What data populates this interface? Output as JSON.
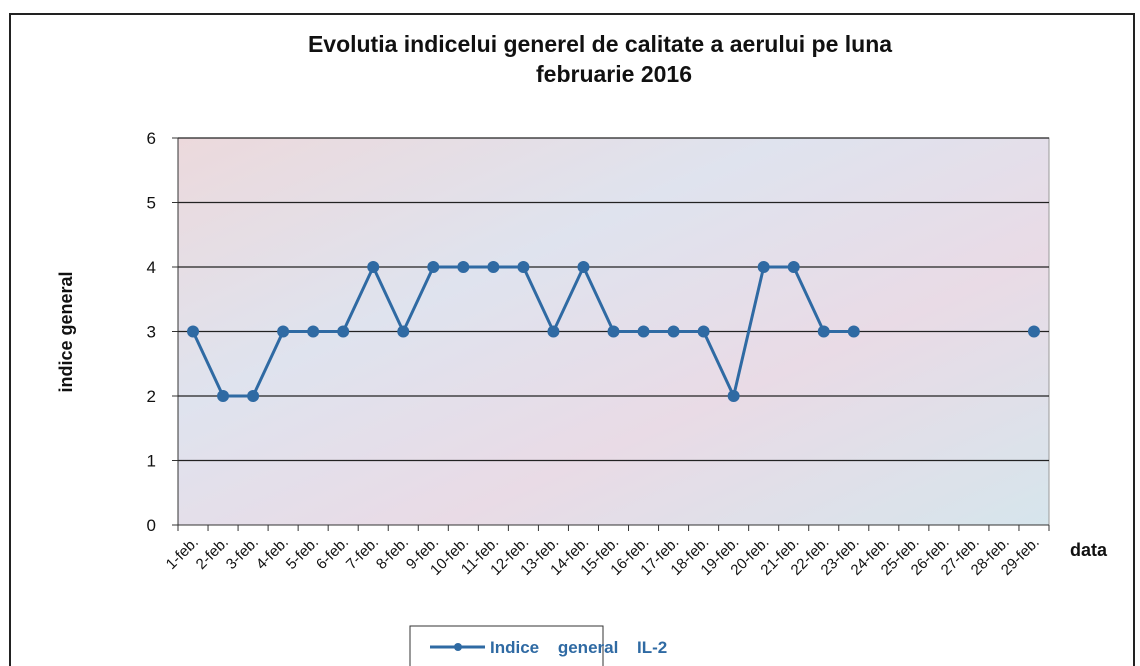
{
  "chart_data": {
    "type": "line",
    "title": [
      "Evolutia indicelui generel de calitate a aerului pe luna",
      "februarie 2016"
    ],
    "y_label": "indice general",
    "x_label": "data",
    "categories": [
      "1-feb.",
      "2-feb.",
      "3-feb.",
      "4-feb.",
      "5-feb.",
      "6-feb.",
      "7-feb.",
      "8-feb.",
      "9-feb.",
      "10-feb.",
      "11-feb.",
      "12-feb.",
      "13-feb.",
      "14-feb.",
      "15-feb.",
      "16-feb.",
      "17-feb.",
      "18-feb.",
      "19-feb.",
      "20-feb.",
      "21-feb.",
      "22-feb.",
      "23-feb.",
      "24-feb.",
      "25-feb.",
      "26-feb.",
      "27-feb.",
      "28-feb.",
      "29-feb."
    ],
    "series": [
      {
        "name": "Indice general IL-2",
        "color": "#2f6aa3",
        "values": [
          3,
          2,
          2,
          3,
          3,
          3,
          4,
          3,
          4,
          4,
          4,
          4,
          3,
          4,
          3,
          3,
          3,
          3,
          2,
          4,
          4,
          3,
          3,
          null,
          null,
          null,
          null,
          null,
          3
        ]
      }
    ],
    "ylim": [
      0,
      6
    ],
    "yticks": [
      0,
      1,
      2,
      3,
      4,
      5,
      6
    ],
    "grid": true,
    "legend": "bottom"
  }
}
